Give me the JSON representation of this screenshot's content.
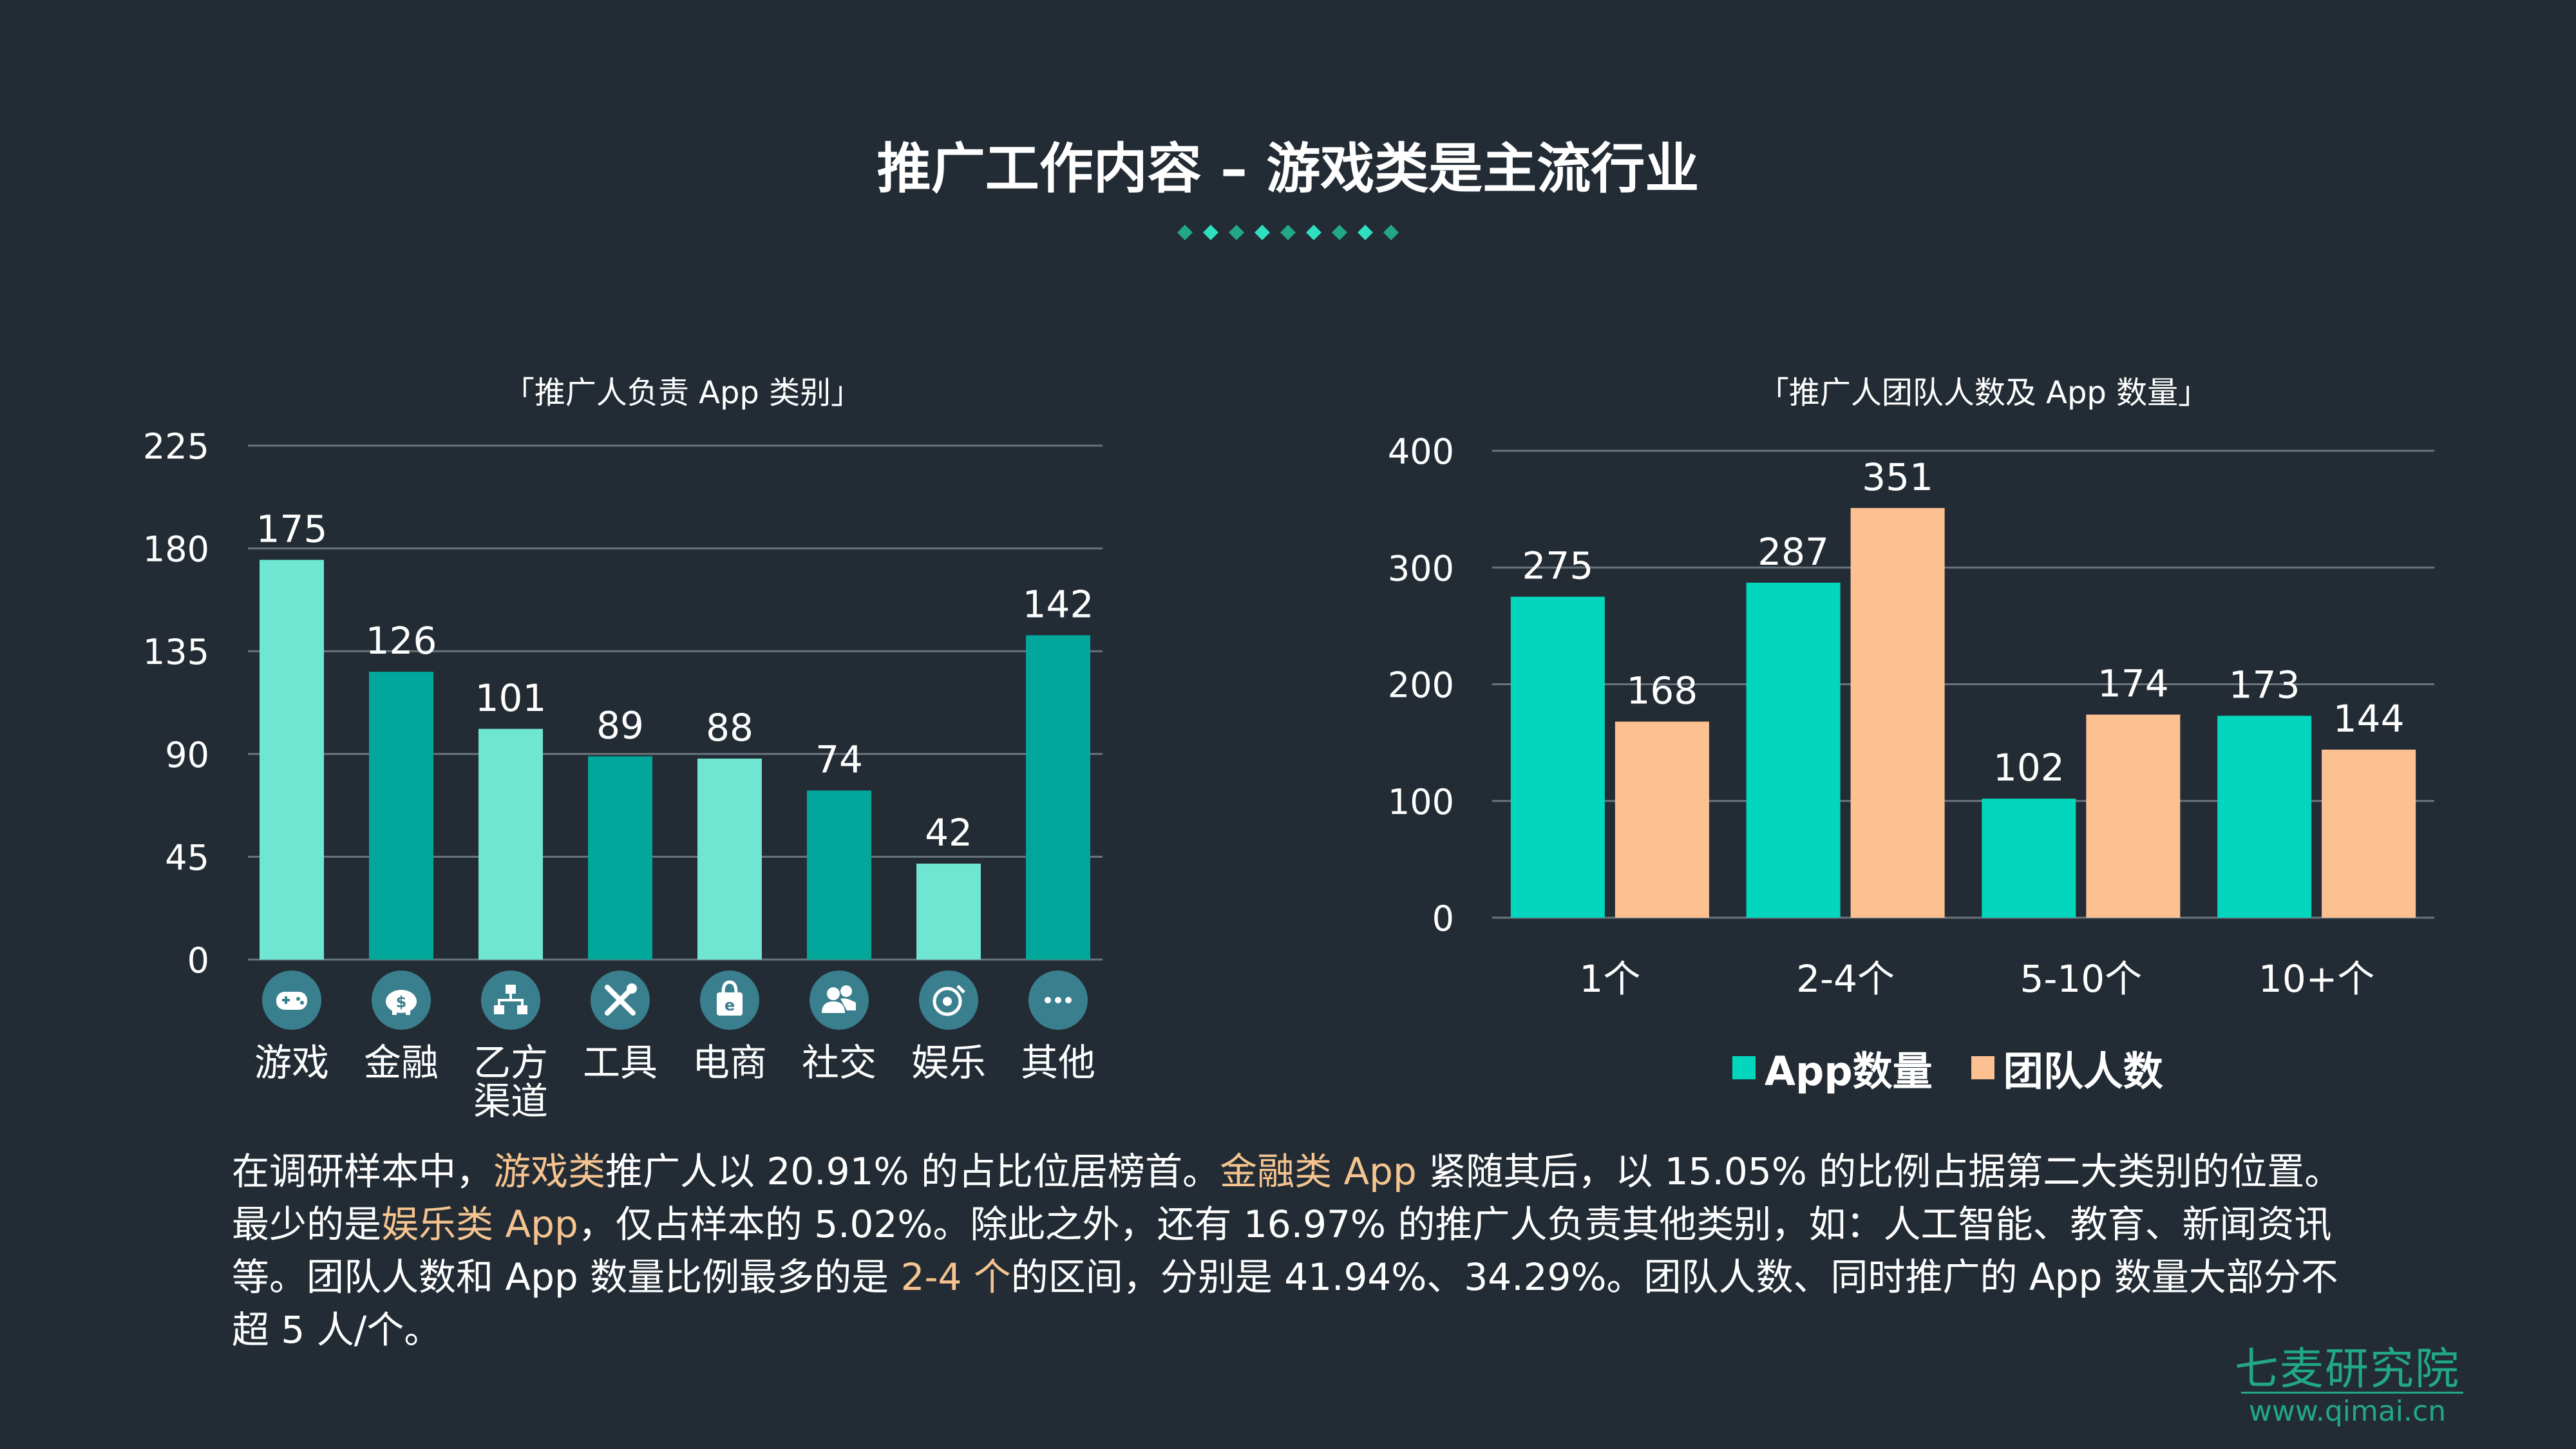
{
  "title": "推广工作内容 – 游戏类是主流行业",
  "colors": {
    "background": "#232c35",
    "light_teal": "#6fe6d2",
    "dark_teal": "#00a79a",
    "app_color": "#02d6bd",
    "team_color": "#fdc191",
    "highlight": "#f5c48f",
    "brand": "#22a884"
  },
  "chart_data": [
    {
      "type": "bar",
      "title": "「推广人负责 App 类别」",
      "categories": [
        "游戏",
        "金融",
        "乙方渠道",
        "工具",
        "电商",
        "社交",
        "娱乐",
        "其他"
      ],
      "category_lines": [
        [
          "游戏"
        ],
        [
          "金融"
        ],
        [
          "乙方",
          "渠道"
        ],
        [
          "工具"
        ],
        [
          "电商"
        ],
        [
          "社交"
        ],
        [
          "娱乐"
        ],
        [
          "其他"
        ]
      ],
      "category_icons": [
        "gamepad-icon",
        "piggy-bank-icon",
        "network-icon",
        "tools-icon",
        "shopping-bag-icon",
        "users-icon",
        "music-icon",
        "more-icon"
      ],
      "values": [
        175,
        126,
        101,
        89,
        88,
        74,
        42,
        142
      ],
      "ylim": [
        0,
        225
      ],
      "yticks": [
        "0",
        "45",
        "90",
        "135",
        "180",
        "225"
      ],
      "grid": true
    },
    {
      "type": "bar",
      "title": "「推广人团队人数及 App 数量」",
      "categories": [
        "1个",
        "2-4个",
        "5-10个",
        "10+个"
      ],
      "series": [
        {
          "name": "App数量",
          "values": [
            275,
            287,
            102,
            173
          ]
        },
        {
          "name": "团队人数",
          "values": [
            168,
            351,
            174,
            144
          ]
        }
      ],
      "ylim": [
        0,
        400
      ],
      "yticks": [
        "0",
        "100",
        "200",
        "300",
        "400"
      ],
      "grid": true,
      "legend": "bottom"
    }
  ],
  "paragraph": [
    {
      "t": "在调研样本中，",
      "hl": false
    },
    {
      "t": "游戏类",
      "hl": true
    },
    {
      "t": "推广人以 20.91% 的占比位居榜首。",
      "hl": false
    },
    {
      "t": "金融类 App",
      "hl": true
    },
    {
      "t": " 紧随其后，以 15.05% 的比例占据第二大类别的位置。最少的是",
      "hl": false
    },
    {
      "t": "娱乐类 App",
      "hl": true
    },
    {
      "t": "，仅占样本的 5.02%。除此之外，还有 16.97% 的推广人负责其他类别，如：人工智能、教育、新闻资讯等。团队人数和 App 数量比例最多的是 ",
      "hl": false
    },
    {
      "t": "2-4 个",
      "hl": true
    },
    {
      "t": "的区间，分别是 41.94%、34.29%。团队人数、同时推广的 App 数量大部分不超 5 人/个。",
      "hl": false
    }
  ],
  "logo": {
    "name": "七麦研究院",
    "url": "www.qimai.cn"
  }
}
